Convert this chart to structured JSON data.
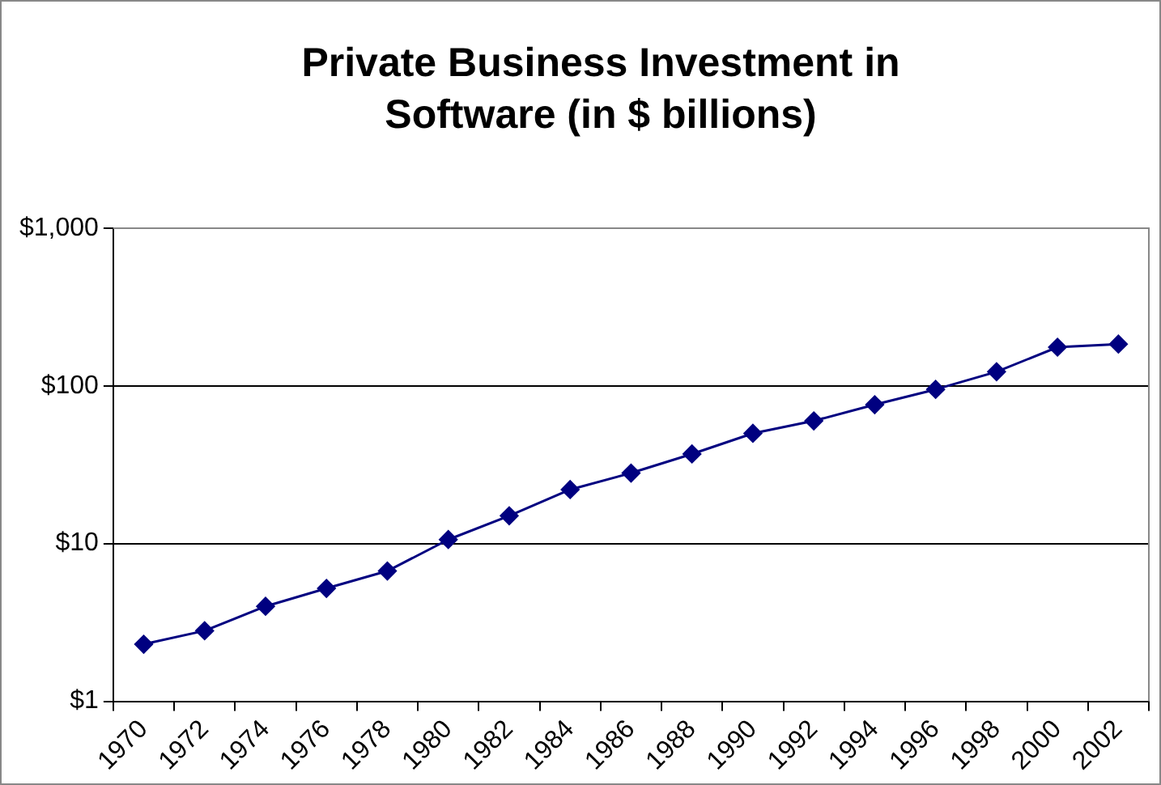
{
  "chart_data": {
    "type": "line",
    "title": "Private Business Investment in Software (in $ billions)",
    "categories": [
      "1970",
      "1972",
      "1974",
      "1976",
      "1978",
      "1980",
      "1982",
      "1984",
      "1986",
      "1988",
      "1990",
      "1992",
      "1994",
      "1996",
      "1998",
      "2000",
      "2002"
    ],
    "series": [
      {
        "color": "#000080",
        "values": [
          2.3,
          2.8,
          4.0,
          5.2,
          6.7,
          10.6,
          15,
          22,
          28,
          37,
          50,
          60,
          76,
          95,
          123,
          176,
          184
        ]
      }
    ],
    "log": "y",
    "ylim": [
      1,
      1000
    ],
    "yticks": [
      {
        "value": 1,
        "label": "$1"
      },
      {
        "value": 10,
        "label": "$10"
      },
      {
        "value": 100,
        "label": "$100"
      },
      {
        "value": 1000,
        "label": "$1,000"
      }
    ],
    "grid": "y",
    "legend": false,
    "marker": "diamond",
    "line_style": "solid"
  }
}
